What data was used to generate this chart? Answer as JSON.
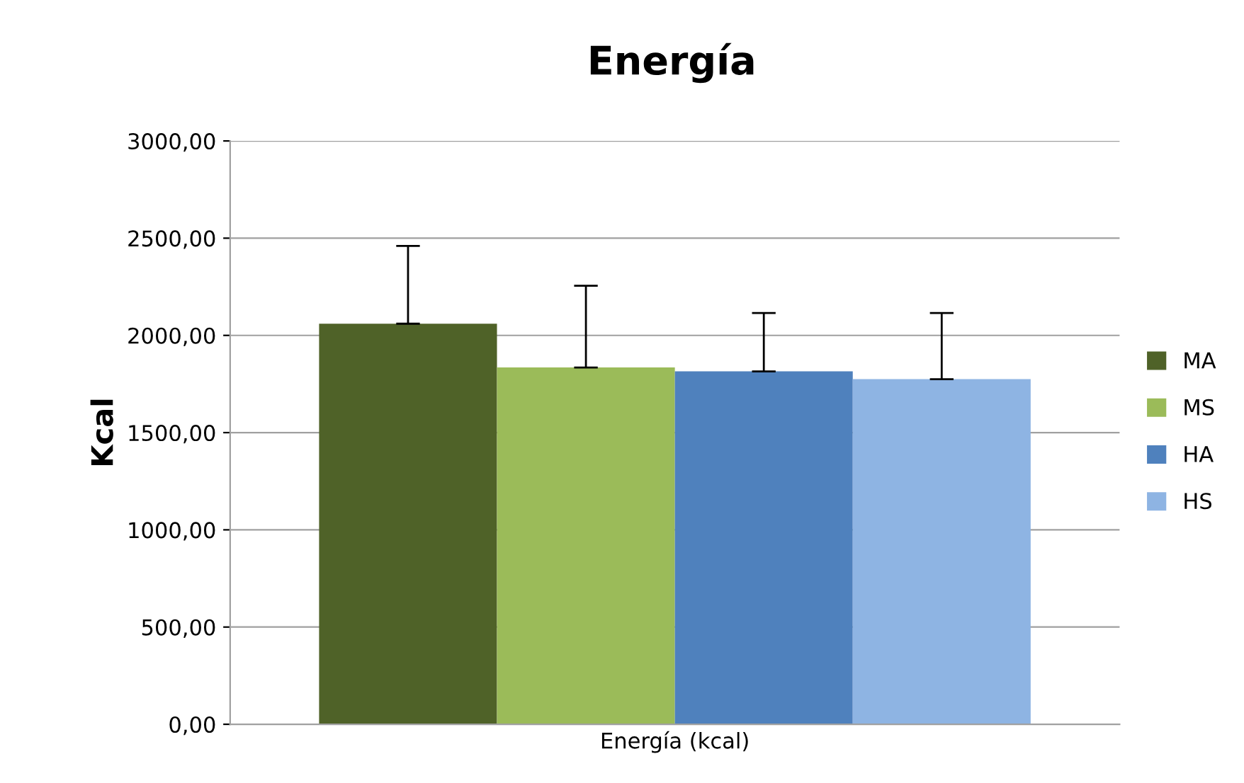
{
  "chart_data": {
    "type": "bar",
    "title": "Energía",
    "ylabel": "Kcal",
    "categories": [
      "Energía (kcal)"
    ],
    "series": [
      {
        "name": "MA",
        "color": "#4f6228",
        "values": [
          2060
        ],
        "errors": [
          400
        ]
      },
      {
        "name": "MS",
        "color": "#9bbb59",
        "values": [
          1835
        ],
        "errors": [
          420
        ]
      },
      {
        "name": "HA",
        "color": "#4f81bd",
        "values": [
          1815
        ],
        "errors": [
          300
        ]
      },
      {
        "name": "HS",
        "color": "#8eb4e3",
        "values": [
          1775
        ],
        "errors": [
          340
        ]
      }
    ],
    "ylim": [
      0,
      3000
    ],
    "yticks": [
      {
        "value": 0,
        "label": "0,00"
      },
      {
        "value": 500,
        "label": "500,00"
      },
      {
        "value": 1000,
        "label": "1000,00"
      },
      {
        "value": 1500,
        "label": "1500,00"
      },
      {
        "value": 2000,
        "label": "2000,00"
      },
      {
        "value": 2500,
        "label": "2500,00"
      },
      {
        "value": 3000,
        "label": "3000,00"
      }
    ],
    "grid": "y",
    "legend": "right"
  }
}
